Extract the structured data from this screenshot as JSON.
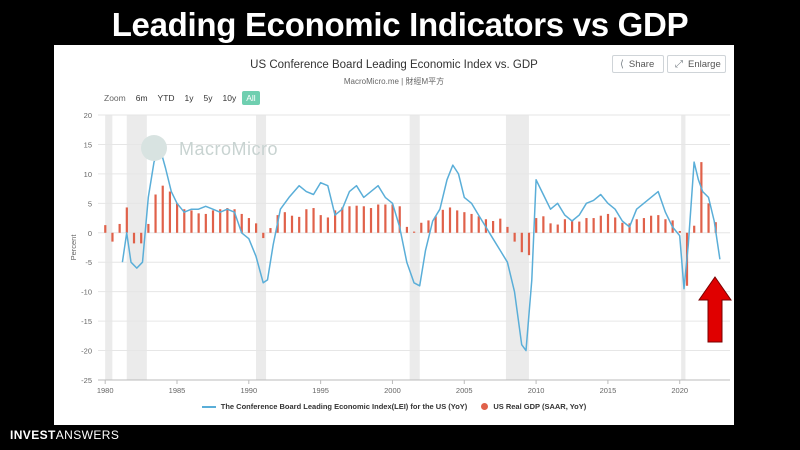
{
  "headline": "Leading Economic Indicators vs GDP",
  "chart_header": {
    "title": "US Conference Board Leading Economic Index vs. GDP",
    "subtitle": "MacroMicro.me | 財經M平方"
  },
  "buttons": {
    "share": "Share",
    "enlarge": "Enlarge"
  },
  "zoom": {
    "label": "Zoom",
    "options": [
      "6m",
      "YTD",
      "1y",
      "5y",
      "10y",
      "All"
    ],
    "selected": "All"
  },
  "watermark": "MacroMicro",
  "brand": {
    "bold": "INVEST",
    "light": "ANSWERS"
  },
  "colors": {
    "lei": "#5aaed8",
    "gdp": "#e0614a",
    "recession": "#ebebeb",
    "arrow": "#e00000"
  },
  "chart_data": {
    "type": "line",
    "title": "US Conference Board Leading Economic Index vs. GDP",
    "ylabel": "Percent",
    "xlim": [
      1979.5,
      2023.5
    ],
    "ylim": [
      -25,
      20
    ],
    "yticks": [
      20,
      15,
      10,
      5,
      0,
      -5,
      -10,
      -15,
      -20,
      -25
    ],
    "xticks": [
      1980,
      1985,
      1990,
      1995,
      2000,
      2005,
      2010,
      2015,
      2020
    ],
    "recessions": [
      [
        1980.0,
        1980.5
      ],
      [
        1981.5,
        1982.9
      ],
      [
        1990.5,
        1991.2
      ],
      [
        2001.2,
        2001.9
      ],
      [
        2007.9,
        2009.5
      ],
      [
        2020.1,
        2020.4
      ]
    ],
    "legend": {
      "position": "bottom-center"
    },
    "series": [
      {
        "name": "The Conference Board Leading Economic Index(LEI) for the US (YoY)",
        "kind": "line",
        "x": [
          1981.2,
          1981.5,
          1981.8,
          1982.2,
          1982.6,
          1983.0,
          1983.4,
          1983.8,
          1984.2,
          1984.6,
          1985.0,
          1985.5,
          1986.0,
          1986.5,
          1987.0,
          1987.5,
          1988.0,
          1988.5,
          1989.0,
          1989.5,
          1990.0,
          1990.5,
          1991.0,
          1991.3,
          1991.7,
          1992.2,
          1992.8,
          1993.5,
          1994.0,
          1994.5,
          1995.0,
          1995.5,
          1996.0,
          1996.5,
          1997.0,
          1997.5,
          1998.0,
          1998.5,
          1999.0,
          1999.5,
          2000.0,
          2000.5,
          2001.0,
          2001.5,
          2001.9,
          2002.3,
          2002.8,
          2003.3,
          2003.8,
          2004.2,
          2004.6,
          2005.0,
          2005.5,
          2006.0,
          2006.5,
          2007.0,
          2007.5,
          2008.0,
          2008.5,
          2009.0,
          2009.3,
          2009.7,
          2010.0,
          2010.5,
          2011.0,
          2011.5,
          2012.0,
          2012.5,
          2013.0,
          2013.5,
          2014.0,
          2014.5,
          2015.0,
          2015.5,
          2016.0,
          2016.5,
          2017.0,
          2017.5,
          2018.0,
          2018.5,
          2019.0,
          2019.5,
          2020.0,
          2020.3,
          2020.6,
          2021.0,
          2021.3,
          2021.6,
          2022.0,
          2022.4,
          2022.8
        ],
        "y": [
          -5.0,
          0.0,
          -5.0,
          -6.0,
          -5.0,
          6.0,
          12.0,
          14.5,
          11.0,
          7.0,
          5.0,
          3.5,
          4.0,
          4.0,
          4.5,
          4.0,
          3.5,
          4.0,
          3.5,
          0.0,
          -1.0,
          -4.0,
          -8.5,
          -8.0,
          -2.0,
          4.0,
          6.0,
          8.0,
          7.0,
          6.5,
          8.5,
          8.0,
          3.0,
          4.0,
          7.0,
          8.0,
          6.0,
          7.0,
          8.0,
          6.0,
          5.0,
          1.0,
          -5.0,
          -8.5,
          -9.0,
          -3.0,
          2.0,
          4.0,
          9.0,
          11.5,
          10.0,
          6.0,
          5.0,
          3.0,
          1.0,
          -1.0,
          -3.0,
          -5.0,
          -10.0,
          -19.0,
          -20.0,
          -8.0,
          9.0,
          6.5,
          4.0,
          5.0,
          3.0,
          2.0,
          3.0,
          5.0,
          5.5,
          6.5,
          5.0,
          4.0,
          2.0,
          1.0,
          4.0,
          5.0,
          6.0,
          7.0,
          3.5,
          1.0,
          -0.5,
          -9.5,
          -2.0,
          12.0,
          9.0,
          7.0,
          6.0,
          2.0,
          -4.5
        ]
      },
      {
        "name": "US Real GDP (SAAR, YoY)",
        "kind": "bar",
        "x": [
          1980.0,
          1980.5,
          1981.0,
          1981.5,
          1982.0,
          1982.5,
          1983.0,
          1983.5,
          1984.0,
          1984.5,
          1985.0,
          1985.5,
          1986.0,
          1986.5,
          1987.0,
          1987.5,
          1988.0,
          1988.5,
          1989.0,
          1989.5,
          1990.0,
          1990.5,
          1991.0,
          1991.5,
          1992.0,
          1992.5,
          1993.0,
          1993.5,
          1994.0,
          1994.5,
          1995.0,
          1995.5,
          1996.0,
          1996.5,
          1997.0,
          1997.5,
          1998.0,
          1998.5,
          1999.0,
          1999.5,
          2000.0,
          2000.5,
          2001.0,
          2001.5,
          2002.0,
          2002.5,
          2003.0,
          2003.5,
          2004.0,
          2004.5,
          2005.0,
          2005.5,
          2006.0,
          2006.5,
          2007.0,
          2007.5,
          2008.0,
          2008.5,
          2009.0,
          2009.5,
          2010.0,
          2010.5,
          2011.0,
          2011.5,
          2012.0,
          2012.5,
          2013.0,
          2013.5,
          2014.0,
          2014.5,
          2015.0,
          2015.5,
          2016.0,
          2016.5,
          2017.0,
          2017.5,
          2018.0,
          2018.5,
          2019.0,
          2019.5,
          2020.0,
          2020.5,
          2021.0,
          2021.5,
          2022.0,
          2022.5
        ],
        "y": [
          1.3,
          -1.5,
          1.5,
          4.3,
          -1.8,
          -1.8,
          1.5,
          6.5,
          8.0,
          7.0,
          5.0,
          4.0,
          3.8,
          3.3,
          3.2,
          3.8,
          4.0,
          4.2,
          4.0,
          3.2,
          2.5,
          1.6,
          -0.9,
          0.8,
          3.0,
          3.5,
          2.9,
          2.7,
          4.0,
          4.2,
          3.0,
          2.6,
          3.8,
          4.3,
          4.5,
          4.6,
          4.5,
          4.2,
          4.8,
          4.8,
          4.8,
          4.5,
          1.0,
          0.2,
          1.7,
          2.1,
          2.8,
          3.9,
          4.3,
          3.8,
          3.5,
          3.2,
          2.8,
          2.3,
          2.0,
          2.4,
          1.0,
          -1.5,
          -3.3,
          -3.8,
          2.5,
          2.8,
          1.6,
          1.4,
          2.3,
          2.1,
          1.9,
          2.5,
          2.5,
          2.9,
          3.2,
          2.6,
          1.7,
          1.6,
          2.3,
          2.5,
          2.9,
          3.0,
          2.3,
          2.1,
          0.3,
          -9.0,
          1.2,
          12.0,
          5.0,
          1.8
        ]
      }
    ]
  }
}
